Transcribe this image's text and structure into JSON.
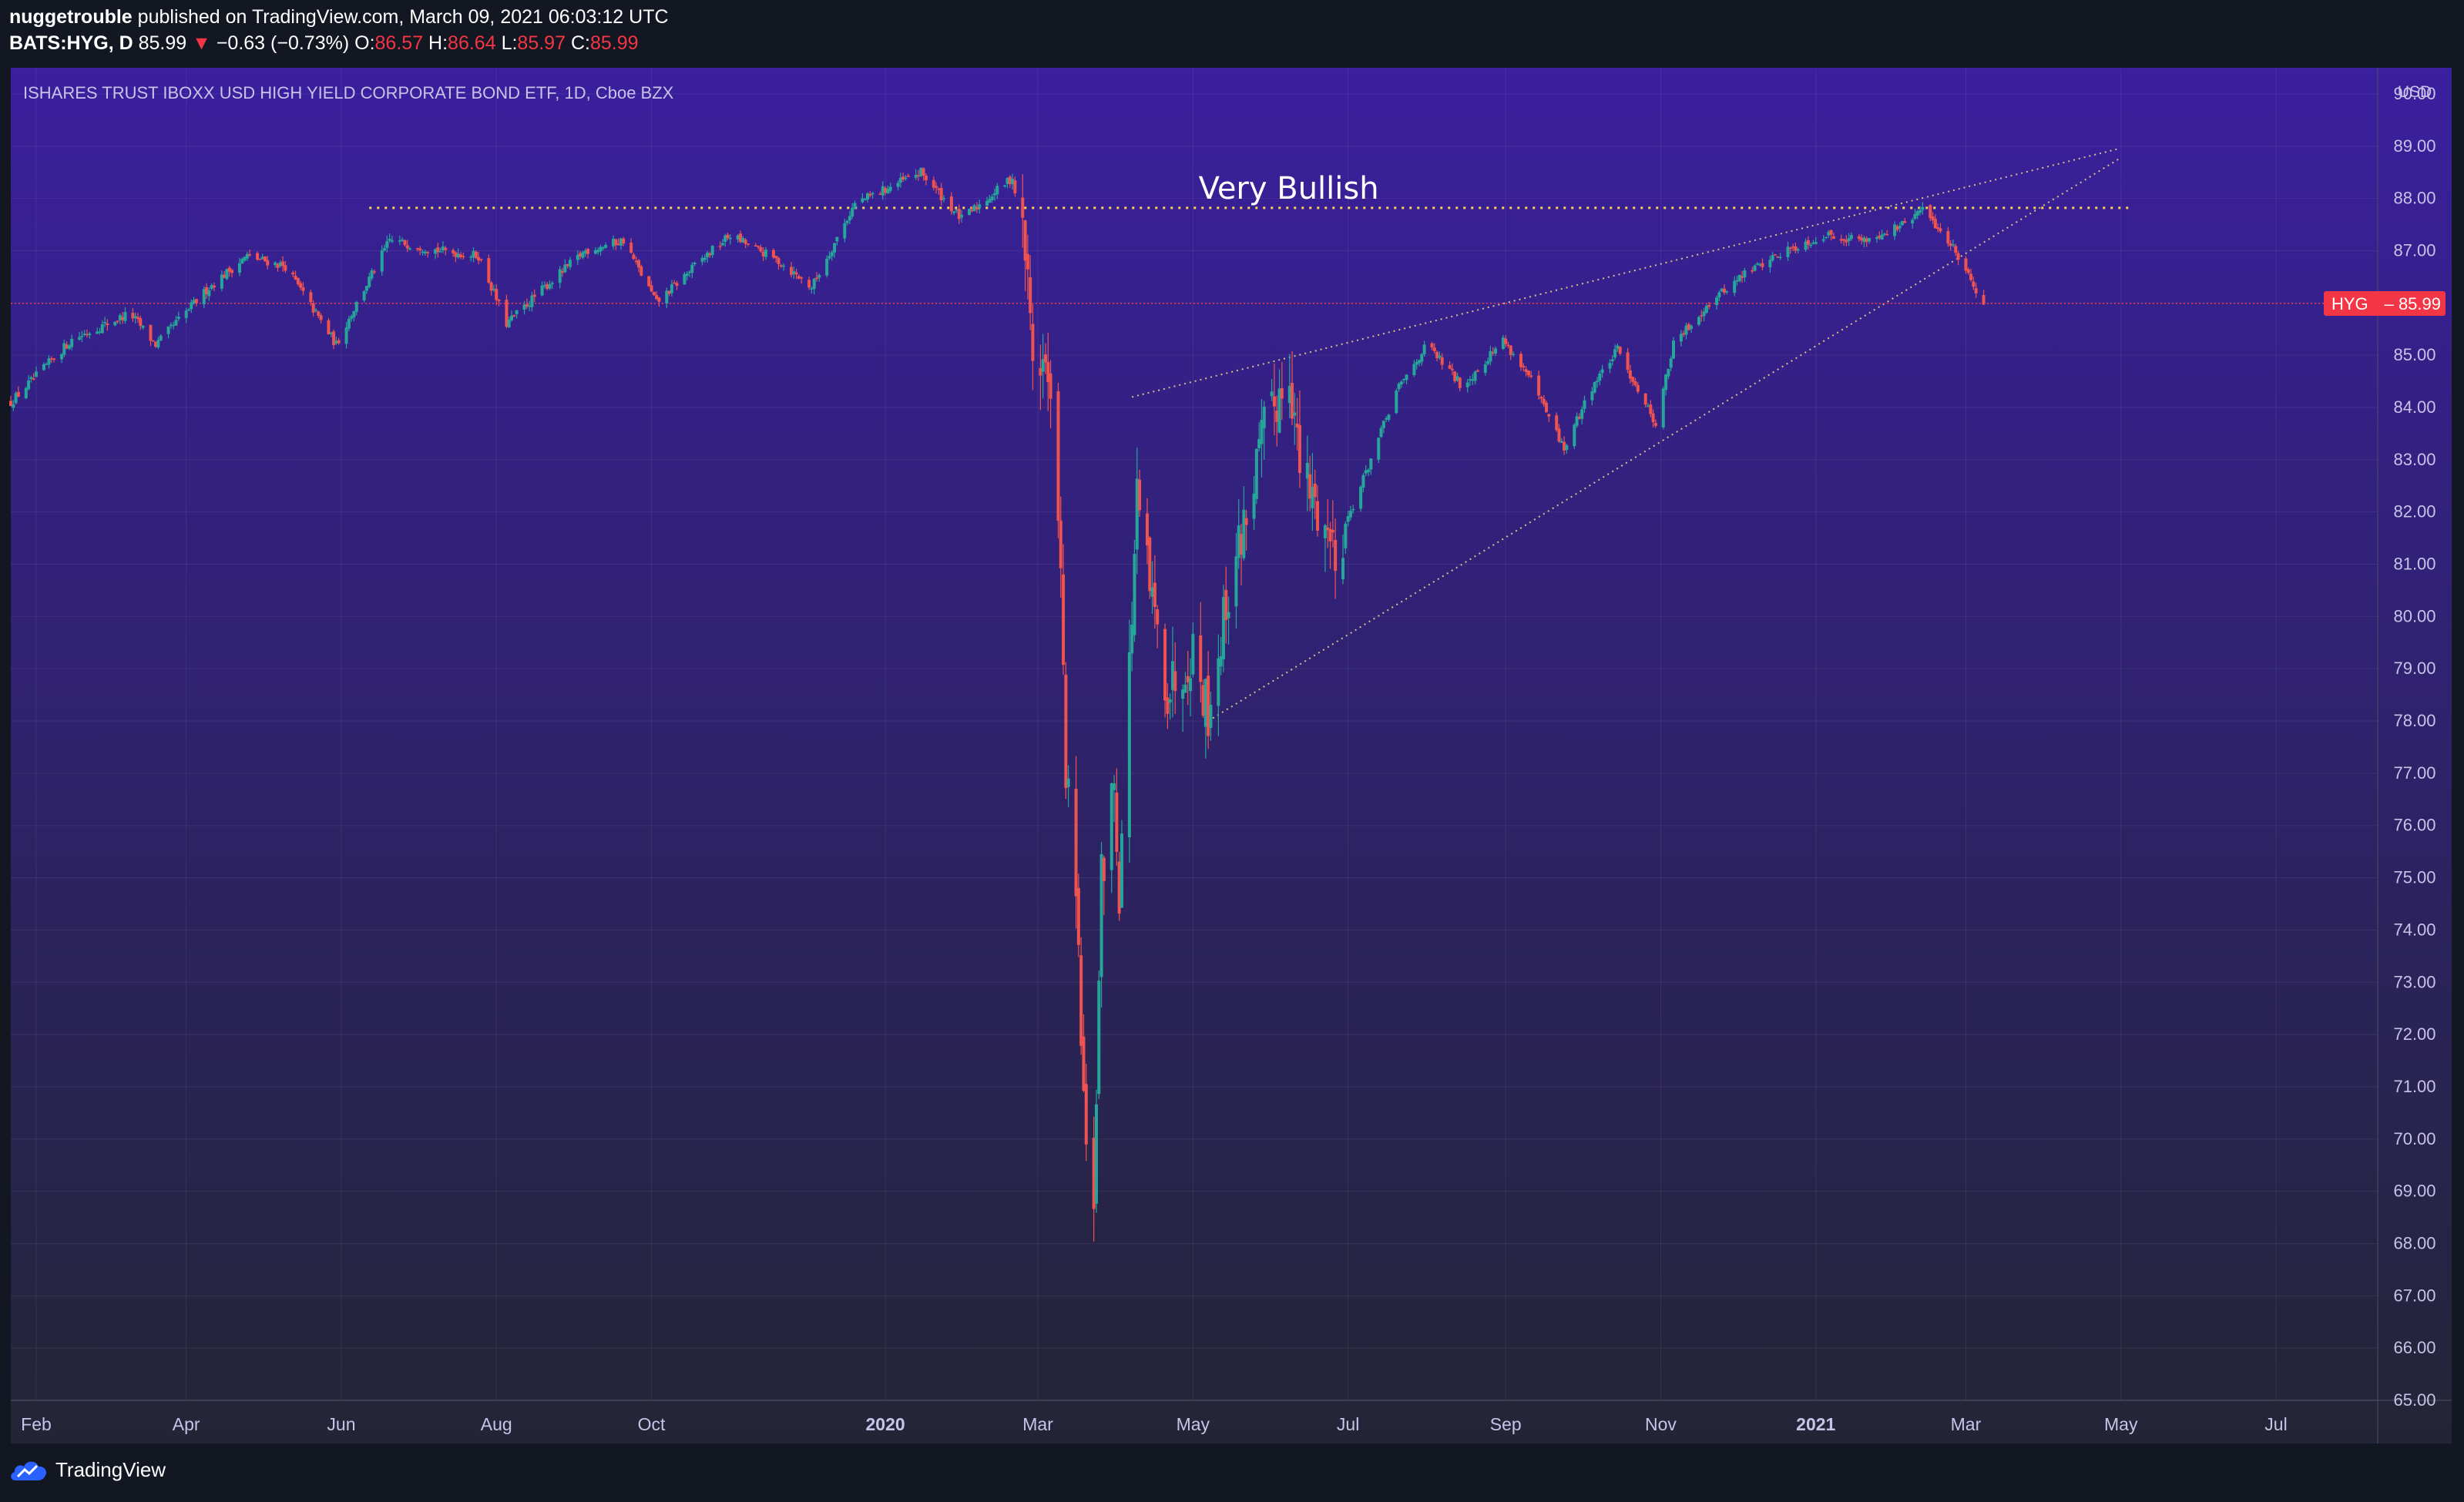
{
  "header": {
    "publisher": "nuggetrouble",
    "published_text": "published on TradingView.com, March 09, 2021 06:03:12 UTC",
    "symbol": "BATS:HYG, D",
    "last": "85.99",
    "change_arrow": "▼",
    "change": "−0.63 (−0.73%)",
    "open_label": "O:",
    "open": "86.57",
    "high_label": "H:",
    "high": "86.64",
    "low_label": "L:",
    "low": "85.97",
    "close_label": "C:",
    "close": "85.99"
  },
  "footer": {
    "brand": "TradingView"
  },
  "colors": {
    "up": "#26a69a",
    "down": "#ef5350",
    "bg_top": "#3a1f9e",
    "bg_bottom": "#232536",
    "accent": "#f23645",
    "level": "#ffd54f"
  },
  "chart_data": {
    "type": "candlestick",
    "title": "ISHARES TRUST IBOXX USD HIGH YIELD CORPORATE BOND ETF, 1D, Cboe BZX",
    "currency": "USD",
    "ylim": [
      65,
      90.5
    ],
    "y_ticks": [
      "90.00",
      "89.00",
      "88.00",
      "87.00",
      "86.00",
      "85.00",
      "84.00",
      "83.00",
      "82.00",
      "81.00",
      "80.00",
      "79.00",
      "78.00",
      "77.00",
      "76.00",
      "75.00",
      "74.00",
      "73.00",
      "72.00",
      "71.00",
      "70.00",
      "69.00",
      "68.00",
      "67.00",
      "66.00",
      "65.00"
    ],
    "x_ticks": [
      {
        "label": "Feb",
        "date": "2019-02-01",
        "bold": false
      },
      {
        "label": "Apr",
        "date": "2019-04-01",
        "bold": false
      },
      {
        "label": "Jun",
        "date": "2019-06-01",
        "bold": false
      },
      {
        "label": "Aug",
        "date": "2019-08-01",
        "bold": false
      },
      {
        "label": "Oct",
        "date": "2019-10-01",
        "bold": false
      },
      {
        "label": "2020",
        "date": "2020-01-01",
        "bold": true
      },
      {
        "label": "Mar",
        "date": "2020-03-01",
        "bold": false
      },
      {
        "label": "May",
        "date": "2020-05-01",
        "bold": false
      },
      {
        "label": "Jul",
        "date": "2020-07-01",
        "bold": false
      },
      {
        "label": "Sep",
        "date": "2020-09-01",
        "bold": false
      },
      {
        "label": "Nov",
        "date": "2020-11-01",
        "bold": false
      },
      {
        "label": "2021",
        "date": "2021-01-01",
        "bold": true
      },
      {
        "label": "Mar",
        "date": "2021-03-01",
        "bold": false
      },
      {
        "label": "May",
        "date": "2021-05-01",
        "bold": false
      },
      {
        "label": "Jul",
        "date": "2021-07-01",
        "bold": false
      }
    ],
    "x_range": [
      "2019-01-22",
      "2021-08-10"
    ],
    "price_path": [
      {
        "date": "2019-01-22",
        "close": 84.1
      },
      {
        "date": "2019-02-15",
        "close": 85.3
      },
      {
        "date": "2019-03-10",
        "close": 85.8
      },
      {
        "date": "2019-03-20",
        "close": 85.2
      },
      {
        "date": "2019-04-10",
        "close": 86.3
      },
      {
        "date": "2019-04-25",
        "close": 86.9
      },
      {
        "date": "2019-05-10",
        "close": 86.7
      },
      {
        "date": "2019-05-30",
        "close": 85.2
      },
      {
        "date": "2019-06-05",
        "close": 85.8
      },
      {
        "date": "2019-06-20",
        "close": 87.2
      },
      {
        "date": "2019-07-10",
        "close": 87.0
      },
      {
        "date": "2019-07-25",
        "close": 86.9
      },
      {
        "date": "2019-08-05",
        "close": 85.6
      },
      {
        "date": "2019-08-20",
        "close": 86.3
      },
      {
        "date": "2019-09-05",
        "close": 87.0
      },
      {
        "date": "2019-09-20",
        "close": 87.2
      },
      {
        "date": "2019-10-03",
        "close": 86.0
      },
      {
        "date": "2019-10-20",
        "close": 86.8
      },
      {
        "date": "2019-11-01",
        "close": 87.3
      },
      {
        "date": "2019-11-20",
        "close": 86.8
      },
      {
        "date": "2019-12-03",
        "close": 86.3
      },
      {
        "date": "2019-12-20",
        "close": 87.9
      },
      {
        "date": "2020-01-15",
        "close": 88.5
      },
      {
        "date": "2020-01-31",
        "close": 87.6
      },
      {
        "date": "2020-02-20",
        "close": 88.4
      },
      {
        "date": "2020-02-25",
        "close": 87.0
      },
      {
        "date": "2020-02-28",
        "close": 85.0
      },
      {
        "date": "2020-03-04",
        "close": 84.8
      },
      {
        "date": "2020-03-09",
        "close": 82.3
      },
      {
        "date": "2020-03-12",
        "close": 77.0
      },
      {
        "date": "2020-03-16",
        "close": 74.5
      },
      {
        "date": "2020-03-20",
        "close": 69.5
      },
      {
        "date": "2020-03-23",
        "close": 68.9
      },
      {
        "date": "2020-03-26",
        "close": 75.0
      },
      {
        "date": "2020-03-31",
        "close": 76.8
      },
      {
        "date": "2020-04-02",
        "close": 74.8
      },
      {
        "date": "2020-04-09",
        "close": 82.2
      },
      {
        "date": "2020-04-15",
        "close": 80.2
      },
      {
        "date": "2020-04-21",
        "close": 78.6
      },
      {
        "date": "2020-05-01",
        "close": 79.4
      },
      {
        "date": "2020-05-07",
        "close": 78.2
      },
      {
        "date": "2020-05-15",
        "close": 80.5
      },
      {
        "date": "2020-05-29",
        "close": 83.5
      },
      {
        "date": "2020-06-08",
        "close": 84.8
      },
      {
        "date": "2020-06-12",
        "close": 82.8
      },
      {
        "date": "2020-06-26",
        "close": 81.3
      },
      {
        "date": "2020-07-06",
        "close": 82.5
      },
      {
        "date": "2020-07-20",
        "close": 84.3
      },
      {
        "date": "2020-08-01",
        "close": 85.2
      },
      {
        "date": "2020-08-15",
        "close": 84.4
      },
      {
        "date": "2020-08-31",
        "close": 85.3
      },
      {
        "date": "2020-09-10",
        "close": 84.6
      },
      {
        "date": "2020-09-24",
        "close": 83.2
      },
      {
        "date": "2020-10-05",
        "close": 84.4
      },
      {
        "date": "2020-10-15",
        "close": 85.1
      },
      {
        "date": "2020-10-30",
        "close": 83.7
      },
      {
        "date": "2020-11-06",
        "close": 85.2
      },
      {
        "date": "2020-11-20",
        "close": 86.0
      },
      {
        "date": "2020-12-05",
        "close": 86.6
      },
      {
        "date": "2020-12-20",
        "close": 87.0
      },
      {
        "date": "2021-01-05",
        "close": 87.3
      },
      {
        "date": "2021-01-20",
        "close": 87.2
      },
      {
        "date": "2021-02-05",
        "close": 87.5
      },
      {
        "date": "2021-02-12",
        "close": 87.8
      },
      {
        "date": "2021-02-25",
        "close": 87.0
      },
      {
        "date": "2021-03-08",
        "close": 85.99
      }
    ],
    "last_price_label": {
      "symbol": "HYG",
      "value": "85.99"
    },
    "annotations": [
      {
        "type": "horizontal_level",
        "text": "Very Bullish",
        "price": 87.82,
        "from": "2019-06-12",
        "to": "2021-05-05"
      },
      {
        "type": "trend_line",
        "from": {
          "date": "2020-04-07",
          "price": 84.2
        },
        "to": {
          "date": "2021-04-30",
          "price": 88.95
        }
      },
      {
        "type": "trend_line",
        "from": {
          "date": "2020-05-07",
          "price": 78.0
        },
        "to": {
          "date": "2021-04-30",
          "price": 88.75
        }
      }
    ]
  }
}
